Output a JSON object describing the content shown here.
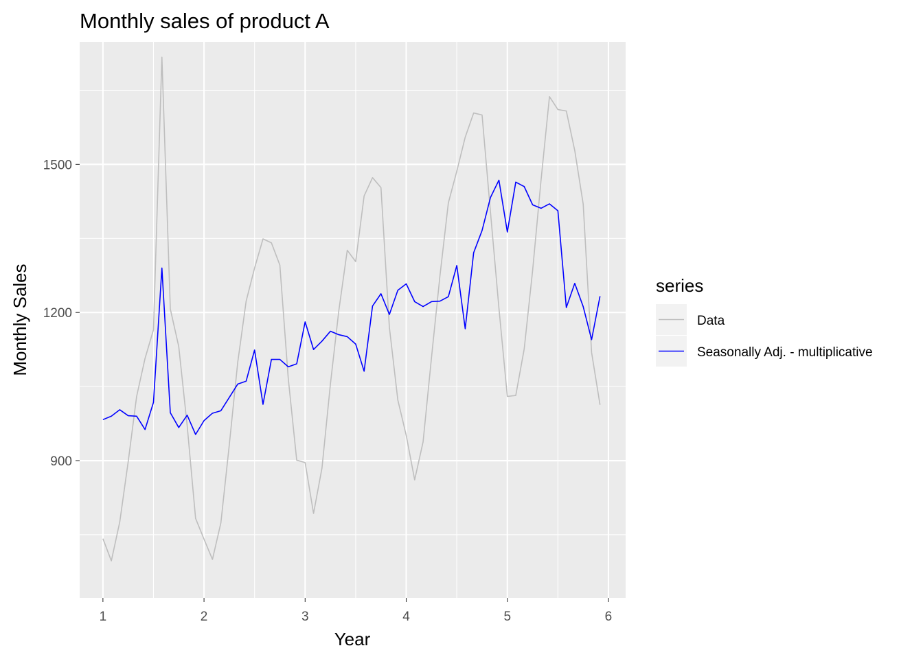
{
  "chart_data": {
    "type": "line",
    "title": "Monthly sales of product A",
    "xlabel": "Year",
    "ylabel": "Monthly Sales",
    "xlim": [
      0.77,
      6.17
    ],
    "ylim": [
      622,
      1748
    ],
    "x_ticks": [
      1,
      2,
      3,
      4,
      5,
      6
    ],
    "x_tick_labels": [
      "1",
      "2",
      "3",
      "4",
      "5",
      "6"
    ],
    "y_ticks": [
      900,
      1200,
      1500
    ],
    "y_tick_labels": [
      "900",
      "1200",
      "1500"
    ],
    "grid": true,
    "legend": {
      "title": "series",
      "position": "right"
    },
    "x_start": 1,
    "x_step": 0.0833333,
    "series": [
      {
        "name": "Data",
        "color": "#bebebe",
        "values": [
          742,
          697,
          776,
          898,
          1030,
          1107,
          1165,
          1717,
          1207,
          1131,
          971,
          783,
          741,
          700,
          774,
          932,
          1099,
          1223,
          1290,
          1349,
          1341,
          1296,
          1066,
          901,
          896,
          793,
          885,
          1055,
          1204,
          1326,
          1303,
          1436,
          1473,
          1453,
          1170,
          1023,
          951,
          861,
          938,
          1109,
          1274,
          1422,
          1486,
          1555,
          1604,
          1600,
          1403,
          1209,
          1030,
          1032,
          1126,
          1285,
          1468,
          1637,
          1611,
          1608,
          1528,
          1420,
          1119,
          1013
        ]
      },
      {
        "name": "Seasonally Adj. - multiplicative",
        "color": "#0000ff",
        "values": [
          983,
          990,
          1003,
          991,
          990,
          963,
          1018,
          1290,
          997,
          967,
          992,
          953,
          981,
          996,
          1001,
          1028,
          1055,
          1061,
          1124,
          1014,
          1105,
          1105,
          1090,
          1096,
          1181,
          1125,
          1142,
          1162,
          1155,
          1151,
          1136,
          1081,
          1213,
          1238,
          1196,
          1245,
          1258,
          1222,
          1212,
          1222,
          1223,
          1232,
          1295,
          1167,
          1321,
          1366,
          1433,
          1468,
          1363,
          1464,
          1455,
          1418,
          1411,
          1420,
          1406,
          1210,
          1259,
          1212,
          1145,
          1233
        ]
      }
    ]
  }
}
